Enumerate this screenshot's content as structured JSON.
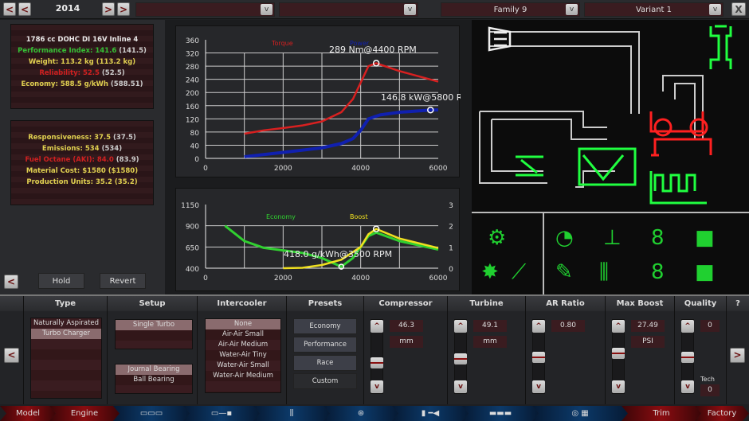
{
  "topbar": {
    "year": "2014",
    "prev_fast": "<",
    "prev": "<",
    "next": ">",
    "next_fast": ">",
    "dropdown1": "",
    "dropdown2": "",
    "family": "Family 9",
    "variant": "Variant 1",
    "dd_glyph": "v",
    "close": "X"
  },
  "stats1": {
    "engine": "1786 cc DOHC DI 16V Inline 4",
    "performance": "Performance Index: 141.6",
    "performance_prev": "(141.5)",
    "weight": "Weight: 113.2 kg",
    "weight_prev": "(113.2 kg)",
    "reliability": "Reliability: 52.5",
    "reliability_prev": "(52.5)",
    "economy": "Economy: 588.5 g/kWh",
    "economy_prev": "(588.51)"
  },
  "stats2": {
    "responsiveness": "Responsiveness: 37.5",
    "responsiveness_prev": "(37.5)",
    "emissions": "Emissions: 534",
    "emissions_prev": "(534)",
    "fuel_octane": "Fuel Octane (AKI): 84.0",
    "fuel_octane_prev": "(83.9)",
    "material_cost": "Material Cost: $1580",
    "material_cost_prev": "($1580)",
    "production_units": "Production Units: 35.2",
    "production_units_prev": "(35.2)"
  },
  "actions": {
    "back": "<",
    "hold": "Hold",
    "revert": "Revert"
  },
  "colors": {
    "torque": "#d82020",
    "power": "#1020b0",
    "economy": "#30d030",
    "boost": "#f0e020",
    "accent_red": "#8a0c10",
    "diagram_green": "#20ff40"
  },
  "chart_data": [
    {
      "type": "line",
      "title": "",
      "xlabel": "",
      "ylabel": "",
      "xlim": [
        0,
        6000
      ],
      "ylim": [
        0,
        360
      ],
      "grid": true,
      "x_ticks": [
        "0",
        "2000",
        "4000",
        "6000"
      ],
      "y_ticks": [
        "0",
        "40",
        "80",
        "120",
        "160",
        "200",
        "240",
        "280",
        "320",
        "360"
      ],
      "legend": [
        "Torque",
        "Power"
      ],
      "series": [
        {
          "name": "Torque",
          "x": [
            1000,
            1500,
            2000,
            2500,
            3000,
            3500,
            3800,
            4000,
            4200,
            4400,
            5000,
            6000
          ],
          "y": [
            75,
            85,
            92,
            100,
            112,
            140,
            180,
            230,
            280,
            289,
            265,
            233
          ]
        },
        {
          "name": "Power",
          "x": [
            1000,
            2000,
            3000,
            3500,
            3800,
            4000,
            4200,
            4500,
            5000,
            5800,
            6000
          ],
          "y": [
            5,
            18,
            32,
            45,
            60,
            85,
            120,
            132,
            140,
            146.8,
            147
          ]
        }
      ],
      "annotations": [
        {
          "text": "289 Nm@4400 RPM",
          "x": 4400,
          "y": 289,
          "series": "Torque"
        },
        {
          "text": "146.8 kW@5800 RPM",
          "x": 5800,
          "y": 146.8,
          "series": "Power"
        }
      ]
    },
    {
      "type": "line",
      "title": "",
      "xlabel": "",
      "ylabel": "",
      "xlim": [
        0,
        6000
      ],
      "ylim": [
        400,
        1150
      ],
      "y2lim": [
        0,
        3
      ],
      "grid": true,
      "x_ticks": [
        "0",
        "2000",
        "4000",
        "6000"
      ],
      "y_ticks": [
        "400",
        "650",
        "900",
        "1150"
      ],
      "y2_ticks": [
        "0",
        "1",
        "2",
        "3"
      ],
      "legend": [
        "Economy",
        "Boost"
      ],
      "series": [
        {
          "name": "Economy",
          "axis": "left",
          "x": [
            500,
            1000,
            1500,
            2000,
            2500,
            3000,
            3500,
            3800,
            4200,
            4400,
            5000,
            6000
          ],
          "y": [
            900,
            720,
            640,
            610,
            580,
            520,
            418,
            520,
            780,
            820,
            720,
            620
          ]
        },
        {
          "name": "Boost",
          "axis": "right",
          "x": [
            2000,
            2500,
            3000,
            3500,
            4000,
            4200,
            4400,
            5000,
            6000
          ],
          "y": [
            0,
            0.02,
            0.15,
            0.4,
            1.0,
            1.6,
            1.85,
            1.4,
            0.95
          ]
        }
      ],
      "annotations": [
        {
          "text": "418.0 g/kWh@3500 RPM",
          "x": 3500,
          "y": 418,
          "series": "Economy"
        }
      ]
    }
  ],
  "turbo": {
    "headers": [
      "Type",
      "Setup",
      "Intercooler",
      "Presets",
      "Compressor",
      "Turbine",
      "AR Ratio",
      "Max Boost",
      "Quality",
      "?"
    ],
    "type_options": [
      "Naturally Aspirated",
      "Turbo Charger"
    ],
    "type_selected": 1,
    "setup_options": [
      "Single Turbo"
    ],
    "setup_selected": 0,
    "bearing_options": [
      "Journal Bearing",
      "Ball Bearing"
    ],
    "bearing_selected": 0,
    "intercooler_options": [
      "None",
      "Air-Air Small",
      "Air-Air Medium",
      "Water-Air Tiny",
      "Water-Air Small",
      "Water-Air Medium"
    ],
    "intercooler_selected": 0,
    "presets": [
      "Economy",
      "Performance",
      "Race",
      "Custom"
    ],
    "compressor": {
      "value": "46.3",
      "unit": "mm",
      "level": 0.35
    },
    "turbine": {
      "value": "49.1",
      "unit": "mm",
      "level": 0.45
    },
    "ar_ratio": {
      "value": "0.80",
      "level": 0.5
    },
    "max_boost": {
      "value": "27.49",
      "unit": "PSI",
      "level": 0.6
    },
    "quality": {
      "value": "0",
      "tech_label": "Tech",
      "tech_value": "0",
      "level": 0.5
    },
    "up": "^",
    "down": "v",
    "prev": "<",
    "next": ">"
  },
  "bottom_nav": [
    "Model",
    "Engine",
    "",
    "",
    "",
    "",
    "",
    "",
    "",
    "Trim",
    "Factory"
  ]
}
